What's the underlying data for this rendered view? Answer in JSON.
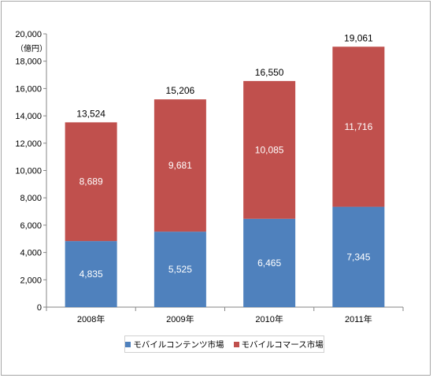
{
  "chart_data": {
    "type": "bar",
    "stacked": true,
    "categories": [
      "2008年",
      "2009年",
      "2010年",
      "2011年"
    ],
    "series": [
      {
        "name": "モバイルコンテンツ市場",
        "values": [
          4835,
          5525,
          6465,
          7345
        ],
        "labels": [
          "4,835",
          "5,525",
          "6,465",
          "7,345"
        ],
        "color": "#4f81bd"
      },
      {
        "name": "モバイルコマース市場",
        "values": [
          8689,
          9681,
          10085,
          11716
        ],
        "labels": [
          "8,689",
          "9,681",
          "10,085",
          "11,716"
        ],
        "color": "#c0504d"
      }
    ],
    "totals": [
      "13,524",
      "15,206",
      "16,550",
      "19,061"
    ],
    "ylabel": "（億円）",
    "ylim": [
      0,
      20000
    ],
    "yticks": [
      0,
      2000,
      4000,
      6000,
      8000,
      10000,
      12000,
      14000,
      16000,
      18000,
      20000
    ],
    "ytick_labels": [
      "0",
      "2,000",
      "4,000",
      "6,000",
      "8,000",
      "10,000",
      "12,000",
      "14,000",
      "16,000",
      "18,000",
      "20,000"
    ],
    "grid": false,
    "legend": "bottom"
  }
}
